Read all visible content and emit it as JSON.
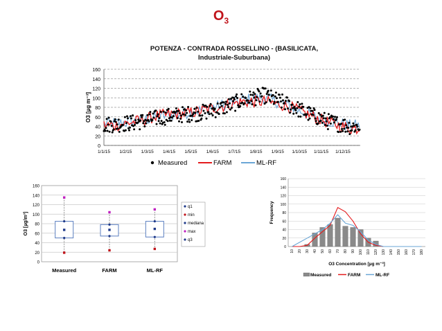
{
  "slide": {
    "title_main": "O",
    "title_sub": "3"
  },
  "chart_data": [
    {
      "id": "timeseries",
      "type": "scatter",
      "title": "POTENZA - CONTRADA ROSSELLINO - (BASILICATA, Industriale-Suburbana)",
      "ylabel": "O3 [µg m⁻³]",
      "xlabel": "",
      "ylim": [
        0,
        160
      ],
      "yticks": [
        0,
        20,
        40,
        60,
        80,
        100,
        120,
        140,
        160
      ],
      "xticks": [
        "1/1/15",
        "1/2/15",
        "1/3/15",
        "1/4/15",
        "1/5/15",
        "1/6/15",
        "1/7/15",
        "1/8/15",
        "1/9/15",
        "1/10/15",
        "1/11/15",
        "1/12/15"
      ],
      "grid": "horizontal dashed",
      "legend": {
        "position": "bottom",
        "items": [
          "Measured",
          "FARM",
          "ML-RF"
        ]
      },
      "colors": {
        "Measured": "#000000",
        "FARM": "#e41a1c",
        "ML-RF": "#6aa6d6"
      },
      "monthly_means": {
        "Measured": [
          44,
          48,
          58,
          64,
          68,
          78,
          95,
          105,
          88,
          68,
          50,
          40
        ],
        "FARM": [
          42,
          50,
          62,
          66,
          72,
          82,
          92,
          92,
          84,
          66,
          48,
          36
        ],
        "ML-RF": [
          46,
          50,
          60,
          66,
          74,
          84,
          96,
          100,
          86,
          66,
          52,
          42
        ]
      }
    },
    {
      "id": "boxplot",
      "type": "box",
      "categories": [
        "Measured",
        "FARM",
        "ML-RF"
      ],
      "ylabel": "O3 [µg/m³]",
      "ylim": [
        0,
        160
      ],
      "yticks": [
        0,
        20,
        40,
        60,
        80,
        100,
        120,
        140,
        160
      ],
      "series": [
        {
          "name": "q1",
          "values": [
            50,
            54,
            52
          ]
        },
        {
          "name": "min",
          "values": [
            19,
            24,
            27
          ]
        },
        {
          "name": "mediana",
          "values": [
            67,
            67,
            69
          ]
        },
        {
          "name": "max",
          "values": [
            135,
            104,
            110
          ]
        },
        {
          "name": "q3",
          "values": [
            85,
            78,
            85
          ]
        }
      ],
      "legend": {
        "position": "right",
        "items": [
          "q1",
          "min",
          "mediana",
          "max",
          "q3"
        ]
      },
      "colors": {
        "q1": "#1f3a8a",
        "min": "#c0141b",
        "mediana": "#1f3a8a",
        "max": "#c020c0",
        "q3": "#1f3a8a",
        "box": "#5b7fc0"
      }
    },
    {
      "id": "histogram",
      "type": "bar",
      "xlabel": "O3 Concentration [µg m⁻³]",
      "ylabel": "Frequency",
      "ylim": [
        0,
        160
      ],
      "yticks": [
        0,
        20,
        40,
        60,
        80,
        100,
        120,
        140,
        160
      ],
      "categories": [
        "10",
        "20",
        "30",
        "40",
        "50",
        "60",
        "70",
        "80",
        "90",
        "100",
        "110",
        "120",
        "130",
        "140",
        "150",
        "160",
        "170",
        "180"
      ],
      "series": [
        {
          "name": "Measured",
          "type": "bar",
          "values": [
            0,
            0,
            5,
            32,
            45,
            52,
            67,
            48,
            45,
            40,
            20,
            13,
            0,
            0,
            0,
            0,
            0,
            0
          ]
        },
        {
          "name": "FARM",
          "type": "line",
          "values": [
            0,
            0,
            3,
            20,
            35,
            50,
            92,
            82,
            60,
            30,
            10,
            3,
            0,
            0,
            0,
            0,
            0,
            0
          ]
        },
        {
          "name": "ML-RF",
          "type": "line",
          "values": [
            0,
            10,
            20,
            30,
            40,
            55,
            75,
            55,
            50,
            35,
            15,
            5,
            0,
            0,
            0,
            0,
            0,
            0
          ]
        }
      ],
      "legend": {
        "position": "bottom",
        "items": [
          "Measured",
          "FARM",
          "ML-RF"
        ]
      },
      "colors": {
        "Measured": "#8a8a8a",
        "FARM": "#e41a1c",
        "ML-RF": "#6aa6d6"
      }
    }
  ]
}
